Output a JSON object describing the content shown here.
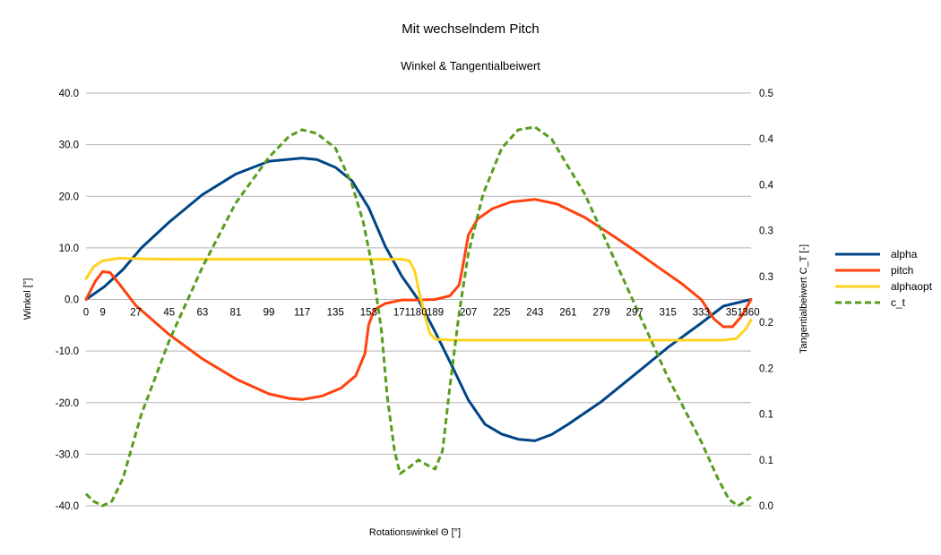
{
  "chart_data": {
    "type": "line",
    "title": "Mit wechselndem Pitch",
    "subtitle": "Winkel & Tangentialbeiwert",
    "xlabel": "Rotationswinkel Θ [°]",
    "ylabel": "Winkel [°]",
    "y2label": "Tangentialbeiwert C_T [-]",
    "xlim": [
      0,
      360
    ],
    "ylim": [
      -40,
      40
    ],
    "y2lim": [
      0,
      0.45
    ],
    "x_ticks": [
      0,
      9,
      27,
      45,
      63,
      81,
      99,
      117,
      135,
      153,
      171,
      180,
      189,
      207,
      225,
      243,
      261,
      279,
      297,
      315,
      333,
      351,
      360
    ],
    "y_ticks": [
      "-40.0",
      "-30.0",
      "-20.0",
      "-10.0",
      "0.0",
      "10.0",
      "20.0",
      "30.0",
      "40.0"
    ],
    "y2_ticks": [
      "0.0",
      "0.1",
      "0.1",
      "0.2",
      "0.2",
      "0.3",
      "0.3",
      "0.4",
      "0.4",
      "0.5"
    ],
    "grid": "horizontal",
    "legend_position": "right",
    "series": [
      {
        "name": "alpha",
        "axis": "left",
        "color": "#004586",
        "style": "solid",
        "points": [
          [
            0,
            0
          ],
          [
            10,
            2.5
          ],
          [
            20,
            5.8
          ],
          [
            30,
            10
          ],
          [
            45,
            15
          ],
          [
            63,
            20.3
          ],
          [
            81,
            24.3
          ],
          [
            99,
            26.8
          ],
          [
            117,
            27.4
          ],
          [
            125,
            27.1
          ],
          [
            135,
            25.6
          ],
          [
            144,
            23
          ],
          [
            153,
            17.8
          ],
          [
            162,
            10.3
          ],
          [
            171,
            4.5
          ],
          [
            180,
            -0.1
          ],
          [
            189,
            -6.3
          ],
          [
            198,
            -12.8
          ],
          [
            207,
            -19.5
          ],
          [
            216,
            -24.2
          ],
          [
            225,
            -26.1
          ],
          [
            234,
            -27.1
          ],
          [
            243,
            -27.4
          ],
          [
            252,
            -26.2
          ],
          [
            261,
            -24.2
          ],
          [
            279,
            -19.8
          ],
          [
            297,
            -14.6
          ],
          [
            315,
            -9.3
          ],
          [
            333,
            -4.6
          ],
          [
            345,
            -1.3
          ],
          [
            360,
            0
          ]
        ]
      },
      {
        "name": "pitch",
        "axis": "left",
        "color": "#ff420e",
        "style": "solid",
        "points": [
          [
            0,
            0
          ],
          [
            5,
            3.5
          ],
          [
            9,
            5.4
          ],
          [
            13,
            5.2
          ],
          [
            18,
            3
          ],
          [
            27,
            -1.2
          ],
          [
            45,
            -6.8
          ],
          [
            63,
            -11.5
          ],
          [
            81,
            -15.4
          ],
          [
            99,
            -18.3
          ],
          [
            110,
            -19.2
          ],
          [
            117,
            -19.4
          ],
          [
            128,
            -18.7
          ],
          [
            138,
            -17.2
          ],
          [
            146,
            -14.8
          ],
          [
            151,
            -10.5
          ],
          [
            153,
            -5
          ],
          [
            156,
            -2
          ],
          [
            162,
            -0.8
          ],
          [
            171,
            -0.1
          ],
          [
            180,
            -0.1
          ],
          [
            189,
            0
          ],
          [
            197,
            0.7
          ],
          [
            202,
            2.8
          ],
          [
            204,
            6.5
          ],
          [
            207,
            12.5
          ],
          [
            212,
            15.6
          ],
          [
            220,
            17.6
          ],
          [
            230,
            18.9
          ],
          [
            243,
            19.4
          ],
          [
            255,
            18.5
          ],
          [
            270,
            15.9
          ],
          [
            285,
            12.4
          ],
          [
            297,
            9.5
          ],
          [
            310,
            6.2
          ],
          [
            322,
            3.2
          ],
          [
            333,
            0
          ],
          [
            340,
            -3.8
          ],
          [
            345,
            -5.3
          ],
          [
            350,
            -5.3
          ],
          [
            355,
            -3.2
          ],
          [
            360,
            0
          ]
        ]
      },
      {
        "name": "alphaopt",
        "axis": "left",
        "color": "#ffd320",
        "style": "solid",
        "points": [
          [
            0,
            4
          ],
          [
            4,
            6.3
          ],
          [
            9,
            7.5
          ],
          [
            18,
            8
          ],
          [
            27,
            7.9
          ],
          [
            45,
            7.8
          ],
          [
            90,
            7.8
          ],
          [
            135,
            7.8
          ],
          [
            171,
            7.8
          ],
          [
            175,
            7.5
          ],
          [
            178,
            5.5
          ],
          [
            180,
            2
          ],
          [
            183,
            -2.5
          ],
          [
            186,
            -6.5
          ],
          [
            189,
            -7.7
          ],
          [
            198,
            -7.9
          ],
          [
            225,
            -7.9
          ],
          [
            270,
            -7.9
          ],
          [
            315,
            -7.9
          ],
          [
            345,
            -7.9
          ],
          [
            352,
            -7.6
          ],
          [
            357,
            -5.8
          ],
          [
            360,
            -4
          ]
        ]
      },
      {
        "name": "c_t",
        "axis": "right",
        "color": "#579d1c",
        "style": "dashed",
        "points": [
          [
            0,
            0.013
          ],
          [
            4,
            0.005
          ],
          [
            9,
            0
          ],
          [
            14,
            0.005
          ],
          [
            20,
            0.03
          ],
          [
            30,
            0.1
          ],
          [
            45,
            0.18
          ],
          [
            63,
            0.26
          ],
          [
            81,
            0.33
          ],
          [
            99,
            0.38
          ],
          [
            110,
            0.403
          ],
          [
            117,
            0.41
          ],
          [
            125,
            0.406
          ],
          [
            135,
            0.39
          ],
          [
            144,
            0.35
          ],
          [
            150,
            0.31
          ],
          [
            155,
            0.26
          ],
          [
            160,
            0.19
          ],
          [
            163,
            0.12
          ],
          [
            167,
            0.06
          ],
          [
            170,
            0.035
          ],
          [
            175,
            0.042
          ],
          [
            180,
            0.05
          ],
          [
            185,
            0.044
          ],
          [
            189,
            0.04
          ],
          [
            193,
            0.06
          ],
          [
            197,
            0.13
          ],
          [
            202,
            0.21
          ],
          [
            207,
            0.275
          ],
          [
            215,
            0.34
          ],
          [
            225,
            0.39
          ],
          [
            234,
            0.41
          ],
          [
            243,
            0.413
          ],
          [
            252,
            0.4
          ],
          [
            261,
            0.37
          ],
          [
            270,
            0.34
          ],
          [
            279,
            0.3
          ],
          [
            297,
            0.22
          ],
          [
            315,
            0.14
          ],
          [
            333,
            0.07
          ],
          [
            342,
            0.03
          ],
          [
            348,
            0.007
          ],
          [
            353,
            0
          ],
          [
            357,
            0.005
          ],
          [
            360,
            0.01
          ]
        ]
      }
    ]
  }
}
